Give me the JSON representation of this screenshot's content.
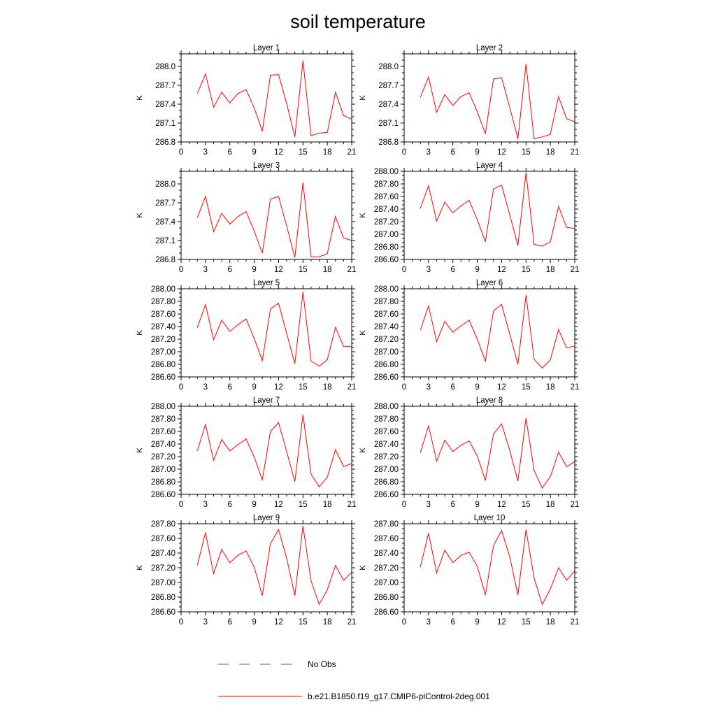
{
  "title": "soil temperature",
  "chart_data": [
    {
      "type": "line",
      "title": "Layer 1",
      "ylabel": "K",
      "xlim": [
        0,
        21
      ],
      "ylim": [
        286.8,
        288.2
      ],
      "xticks": [
        0,
        3,
        6,
        9,
        12,
        15,
        18,
        21
      ],
      "yticks": [
        "286.8",
        "287.1",
        "287.4",
        "287.7",
        "288.0"
      ],
      "series": [
        {
          "name": "b.e21.B1850.f19_g17.CMIP6-piControl-2deg.001",
          "color": "#ff0000",
          "x": [
            2,
            3,
            4,
            5,
            6,
            7,
            8,
            9,
            10,
            11,
            12,
            13,
            14,
            15,
            16,
            17,
            18,
            19,
            20,
            21
          ],
          "y": [
            287.57,
            287.88,
            287.35,
            287.59,
            287.42,
            287.57,
            287.63,
            287.34,
            286.97,
            287.86,
            287.87,
            287.41,
            286.88,
            288.09,
            286.9,
            286.94,
            286.95,
            287.59,
            287.22,
            287.16
          ]
        }
      ]
    },
    {
      "type": "line",
      "title": "Layer 2",
      "ylabel": "K",
      "xlim": [
        0,
        21
      ],
      "ylim": [
        286.8,
        288.2
      ],
      "xticks": [
        0,
        3,
        6,
        9,
        12,
        15,
        18,
        21
      ],
      "yticks": [
        "286.8",
        "287.1",
        "287.4",
        "287.7",
        "288.0"
      ],
      "series": [
        {
          "name": "b.e21.B1850.f19_g17.CMIP6-piControl-2deg.001",
          "color": "#ff0000",
          "x": [
            2,
            3,
            4,
            5,
            6,
            7,
            8,
            9,
            10,
            11,
            12,
            13,
            14,
            15,
            16,
            17,
            18,
            19,
            20,
            21
          ],
          "y": [
            287.51,
            287.83,
            287.27,
            287.55,
            287.38,
            287.52,
            287.58,
            287.28,
            286.93,
            287.8,
            287.82,
            287.35,
            286.85,
            288.04,
            286.85,
            286.88,
            286.92,
            287.52,
            287.17,
            287.12
          ]
        }
      ]
    },
    {
      "type": "line",
      "title": "Layer 3",
      "ylabel": "K",
      "xlim": [
        0,
        21
      ],
      "ylim": [
        286.8,
        288.2
      ],
      "xticks": [
        0,
        3,
        6,
        9,
        12,
        15,
        18,
        21
      ],
      "yticks": [
        "286.8",
        "287.1",
        "287.4",
        "287.7",
        "288.0"
      ],
      "series": [
        {
          "name": "b.e21.B1850.f19_g17.CMIP6-piControl-2deg.001",
          "color": "#ff0000",
          "x": [
            2,
            3,
            4,
            5,
            6,
            7,
            8,
            9,
            10,
            11,
            12,
            13,
            14,
            15,
            16,
            17,
            18,
            19,
            20,
            21
          ],
          "y": [
            287.46,
            287.8,
            287.24,
            287.53,
            287.36,
            287.48,
            287.56,
            287.25,
            286.9,
            287.76,
            287.8,
            287.33,
            286.83,
            288.02,
            286.84,
            286.84,
            286.89,
            287.48,
            287.14,
            287.1
          ]
        }
      ]
    },
    {
      "type": "line",
      "title": "Layer 4",
      "ylabel": "K",
      "xlim": [
        0,
        21
      ],
      "ylim": [
        286.6,
        288.0
      ],
      "xticks": [
        0,
        3,
        6,
        9,
        12,
        15,
        18,
        21
      ],
      "yticks": [
        "286.60",
        "286.80",
        "287.00",
        "287.20",
        "287.40",
        "287.60",
        "287.80",
        "288.00"
      ],
      "series": [
        {
          "name": "b.e21.B1850.f19_g17.CMIP6-piControl-2deg.001",
          "color": "#ff0000",
          "x": [
            2,
            3,
            4,
            5,
            6,
            7,
            8,
            9,
            10,
            11,
            12,
            13,
            14,
            15,
            16,
            17,
            18,
            19,
            20,
            21
          ],
          "y": [
            287.41,
            287.77,
            287.21,
            287.51,
            287.34,
            287.45,
            287.54,
            287.23,
            286.88,
            287.72,
            287.78,
            287.31,
            286.82,
            287.98,
            286.84,
            286.81,
            286.88,
            287.44,
            287.11,
            287.09
          ]
        }
      ]
    },
    {
      "type": "line",
      "title": "Layer 5",
      "ylabel": "K",
      "xlim": [
        0,
        21
      ],
      "ylim": [
        286.6,
        288.0
      ],
      "xticks": [
        0,
        3,
        6,
        9,
        12,
        15,
        18,
        21
      ],
      "yticks": [
        "286.60",
        "286.80",
        "287.00",
        "287.20",
        "287.40",
        "287.60",
        "287.80",
        "288.00"
      ],
      "series": [
        {
          "name": "b.e21.B1850.f19_g17.CMIP6-piControl-2deg.001",
          "color": "#ff0000",
          "x": [
            2,
            3,
            4,
            5,
            6,
            7,
            8,
            9,
            10,
            11,
            12,
            13,
            14,
            15,
            16,
            17,
            18,
            19,
            20,
            21
          ],
          "y": [
            287.38,
            287.75,
            287.19,
            287.5,
            287.32,
            287.43,
            287.52,
            287.21,
            286.86,
            287.68,
            287.77,
            287.29,
            286.81,
            287.95,
            286.85,
            286.77,
            286.87,
            287.39,
            287.08,
            287.08
          ]
        }
      ]
    },
    {
      "type": "line",
      "title": "Layer 6",
      "ylabel": "K",
      "xlim": [
        0,
        21
      ],
      "ylim": [
        286.6,
        288.0
      ],
      "xticks": [
        0,
        3,
        6,
        9,
        12,
        15,
        18,
        21
      ],
      "yticks": [
        "286.60",
        "286.80",
        "287.00",
        "287.20",
        "287.40",
        "287.60",
        "287.80",
        "288.00"
      ],
      "series": [
        {
          "name": "b.e21.B1850.f19_g17.CMIP6-piControl-2deg.001",
          "color": "#ff0000",
          "x": [
            2,
            3,
            4,
            5,
            6,
            7,
            8,
            9,
            10,
            11,
            12,
            13,
            14,
            15,
            16,
            17,
            18,
            19,
            20,
            21
          ],
          "y": [
            287.34,
            287.73,
            287.16,
            287.48,
            287.31,
            287.41,
            287.5,
            287.2,
            286.85,
            287.65,
            287.75,
            287.28,
            286.8,
            287.9,
            286.88,
            286.74,
            286.87,
            287.35,
            287.06,
            287.09
          ]
        }
      ]
    },
    {
      "type": "line",
      "title": "Layer 7",
      "ylabel": "K",
      "xlim": [
        0,
        21
      ],
      "ylim": [
        286.6,
        288.0
      ],
      "xticks": [
        0,
        3,
        6,
        9,
        12,
        15,
        18,
        21
      ],
      "yticks": [
        "286.60",
        "286.80",
        "287.00",
        "287.20",
        "287.40",
        "287.60",
        "287.80",
        "288.00"
      ],
      "series": [
        {
          "name": "b.e21.B1850.f19_g17.CMIP6-piControl-2deg.001",
          "color": "#ff0000",
          "x": [
            2,
            3,
            4,
            5,
            6,
            7,
            8,
            9,
            10,
            11,
            12,
            13,
            14,
            15,
            16,
            17,
            18,
            19,
            20,
            21
          ],
          "y": [
            287.29,
            287.71,
            287.14,
            287.47,
            287.29,
            287.39,
            287.48,
            287.19,
            286.83,
            287.6,
            287.74,
            287.28,
            286.8,
            287.86,
            286.92,
            286.72,
            286.87,
            287.31,
            287.04,
            287.09
          ]
        }
      ]
    },
    {
      "type": "line",
      "title": "Layer 8",
      "ylabel": "K",
      "xlim": [
        0,
        21
      ],
      "ylim": [
        286.6,
        288.0
      ],
      "xticks": [
        0,
        3,
        6,
        9,
        12,
        15,
        18,
        21
      ],
      "yticks": [
        "286.60",
        "286.80",
        "287.00",
        "287.20",
        "287.40",
        "287.60",
        "287.80",
        "288.00"
      ],
      "series": [
        {
          "name": "b.e21.B1850.f19_g17.CMIP6-piControl-2deg.001",
          "color": "#ff0000",
          "x": [
            2,
            3,
            4,
            5,
            6,
            7,
            8,
            9,
            10,
            11,
            12,
            13,
            14,
            15,
            16,
            17,
            18,
            19,
            20,
            21
          ],
          "y": [
            287.26,
            287.69,
            287.13,
            287.46,
            287.28,
            287.38,
            287.45,
            287.21,
            286.82,
            287.56,
            287.72,
            287.3,
            286.81,
            287.81,
            286.98,
            286.7,
            286.88,
            287.27,
            287.04,
            287.12
          ]
        }
      ]
    },
    {
      "type": "line",
      "title": "Layer 9",
      "ylabel": "K",
      "xlim": [
        0,
        21
      ],
      "ylim": [
        286.6,
        287.8
      ],
      "xticks": [
        0,
        3,
        6,
        9,
        12,
        15,
        18,
        21
      ],
      "yticks": [
        "286.60",
        "286.80",
        "287.00",
        "287.20",
        "287.40",
        "287.60",
        "287.80"
      ],
      "series": [
        {
          "name": "b.e21.B1850.f19_g17.CMIP6-piControl-2deg.001",
          "color": "#ff0000",
          "x": [
            2,
            3,
            4,
            5,
            6,
            7,
            8,
            9,
            10,
            11,
            12,
            13,
            14,
            15,
            16,
            17,
            18,
            19,
            20,
            21
          ],
          "y": [
            287.23,
            287.68,
            287.12,
            287.45,
            287.27,
            287.37,
            287.43,
            287.21,
            286.82,
            287.53,
            287.72,
            287.33,
            286.82,
            287.77,
            287.02,
            286.7,
            286.9,
            287.23,
            287.03,
            287.14
          ]
        }
      ]
    },
    {
      "type": "line",
      "title": "Layer 10",
      "ylabel": "K",
      "xlim": [
        0,
        21
      ],
      "ylim": [
        286.6,
        287.8
      ],
      "xticks": [
        0,
        3,
        6,
        9,
        12,
        15,
        18,
        21
      ],
      "yticks": [
        "286.60",
        "286.80",
        "287.00",
        "287.20",
        "287.40",
        "287.60",
        "287.80"
      ],
      "series": [
        {
          "name": "b.e21.B1850.f19_g17.CMIP6-piControl-2deg.001",
          "color": "#ff0000",
          "x": [
            2,
            3,
            4,
            5,
            6,
            7,
            8,
            9,
            10,
            11,
            12,
            13,
            14,
            15,
            16,
            17,
            18,
            19,
            20,
            21
          ],
          "y": [
            287.21,
            287.67,
            287.13,
            287.44,
            287.27,
            287.37,
            287.41,
            287.22,
            286.83,
            287.5,
            287.71,
            287.35,
            286.83,
            287.72,
            287.06,
            286.7,
            286.91,
            287.2,
            287.03,
            287.16
          ]
        }
      ]
    }
  ],
  "legend": [
    {
      "label": "No Obs",
      "color": "#5555aa",
      "style": "dashed"
    },
    {
      "label": "b.e21.B1850.f19_g17.CMIP6-piControl-2deg.001",
      "color": "#ff0000",
      "style": "solid"
    }
  ]
}
